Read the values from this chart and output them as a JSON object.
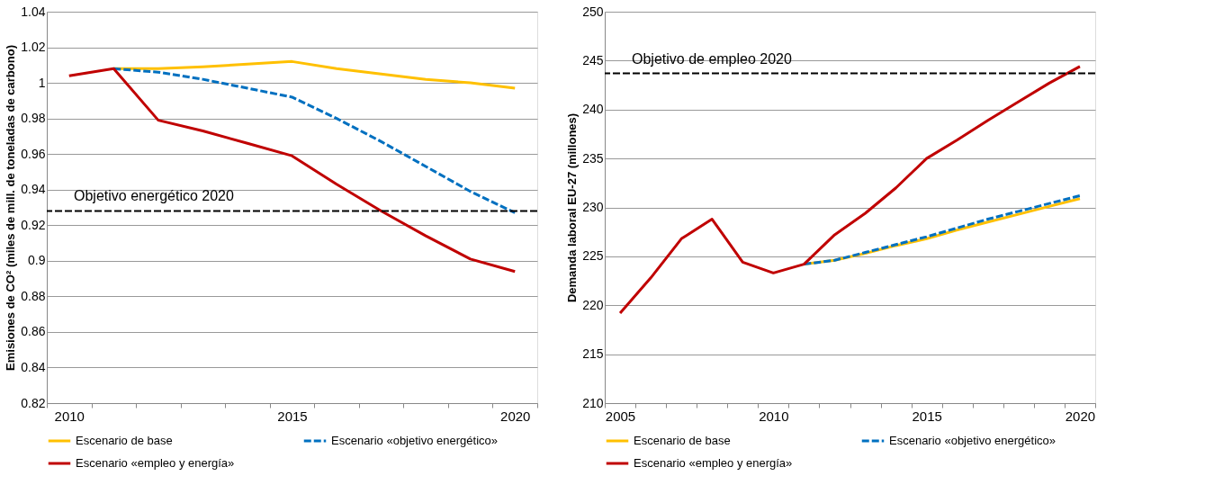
{
  "chart_data": [
    {
      "type": "line",
      "ylabel": "Emisiones de CO² (miles de mill. de toneladas de carbono)",
      "categories": [
        "2010",
        null,
        null,
        null,
        null,
        "2015",
        null,
        null,
        null,
        null,
        "2020"
      ],
      "ylim": [
        0.82,
        1.04
      ],
      "yticks": [
        0.82,
        0.84,
        0.86,
        0.88,
        0.9,
        0.92,
        0.94,
        0.96,
        0.98,
        1,
        1.02,
        1.04
      ],
      "grid": "y",
      "legend": "bottom",
      "series": [
        {
          "name": "Escenario de base",
          "color": "#ffc000",
          "line_style": "solid",
          "values": [
            null,
            1.008,
            1.008,
            1.009,
            1.0105,
            1.012,
            1.008,
            1.005,
            1.002,
            1.0,
            0.997
          ]
        },
        {
          "name": "Escenario «objetivo energético»",
          "color": "#0070c0",
          "line_style": "dashed",
          "values": [
            null,
            1.008,
            1.006,
            1.002,
            0.997,
            0.992,
            0.98,
            0.967,
            0.953,
            0.939,
            0.927
          ]
        },
        {
          "name": "Escenario «empleo y energía»",
          "color": "#c00000",
          "line_style": "solid",
          "values": [
            1.004,
            1.008,
            0.979,
            0.973,
            0.966,
            0.959,
            0.943,
            0.928,
            0.914,
            0.901,
            0.894
          ]
        }
      ],
      "ref_lines": [
        {
          "axis": "y",
          "value": 0.928,
          "label": "Objetivo energético 2020",
          "color": "#000000",
          "line_style": "dashed"
        }
      ]
    },
    {
      "type": "line",
      "ylabel": "Demanda laboral EU-27 (millones)",
      "categories": [
        "2005",
        null,
        null,
        null,
        null,
        "2010",
        null,
        null,
        null,
        null,
        "2015",
        null,
        null,
        null,
        null,
        "2020"
      ],
      "ylim": [
        210,
        250
      ],
      "yticks": [
        210,
        215,
        220,
        225,
        230,
        235,
        240,
        245,
        250
      ],
      "grid": "y",
      "legend": "bottom",
      "series": [
        {
          "name": "Escenario de base",
          "color": "#ffc000",
          "line_style": "solid",
          "values": [
            null,
            null,
            null,
            null,
            null,
            null,
            224.2,
            224.6,
            225.3,
            226.1,
            226.8,
            227.7,
            228.5,
            229.3,
            230.1,
            230.9
          ]
        },
        {
          "name": "Escenario «objetivo energético»",
          "color": "#0070c0",
          "line_style": "dashed",
          "values": [
            null,
            null,
            null,
            null,
            null,
            null,
            224.2,
            224.6,
            225.4,
            226.2,
            227.0,
            227.9,
            228.8,
            229.6,
            230.4,
            231.2
          ]
        },
        {
          "name": "Escenario «empleo y energía»",
          "color": "#c00000",
          "line_style": "solid",
          "values": [
            219.2,
            222.8,
            226.8,
            228.8,
            224.4,
            223.3,
            224.2,
            227.2,
            229.4,
            232.0,
            235.0,
            236.9,
            238.9,
            240.8,
            242.7,
            244.4
          ]
        }
      ],
      "ref_lines": [
        {
          "axis": "y",
          "value": 243.7,
          "label": "Objetivo de empleo 2020",
          "color": "#000000",
          "line_style": "dashed"
        }
      ]
    }
  ]
}
